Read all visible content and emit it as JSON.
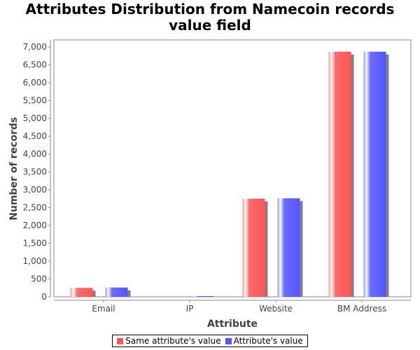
{
  "chart_data": {
    "type": "bar",
    "title_lines": [
      "Attributes Distribution from Namecoin records",
      "value field"
    ],
    "xlabel": "Attribute",
    "ylabel": "Number of records",
    "categories": [
      "Email",
      "IP",
      "Website",
      "BM Address"
    ],
    "series": [
      {
        "name": "Same attribute's value",
        "values": [
          250,
          0,
          2750,
          6870
        ],
        "color": "#ff5555"
      },
      {
        "name": "Attribute's value",
        "values": [
          260,
          20,
          2760,
          6870
        ],
        "color": "#5555ff"
      }
    ],
    "ylim": [
      0,
      7200
    ],
    "yticks": [
      "0",
      "500",
      "1,000",
      "1,500",
      "2,000",
      "2,500",
      "3,000",
      "3,500",
      "4,000",
      "4,500",
      "5,000",
      "5,500",
      "6,000",
      "6,500",
      "7,000"
    ],
    "ytick_values": [
      0,
      500,
      1000,
      1500,
      2000,
      2500,
      3000,
      3500,
      4000,
      4500,
      5000,
      5500,
      6000,
      6500,
      7000
    ],
    "grid": false,
    "legend_position": "bottom"
  }
}
